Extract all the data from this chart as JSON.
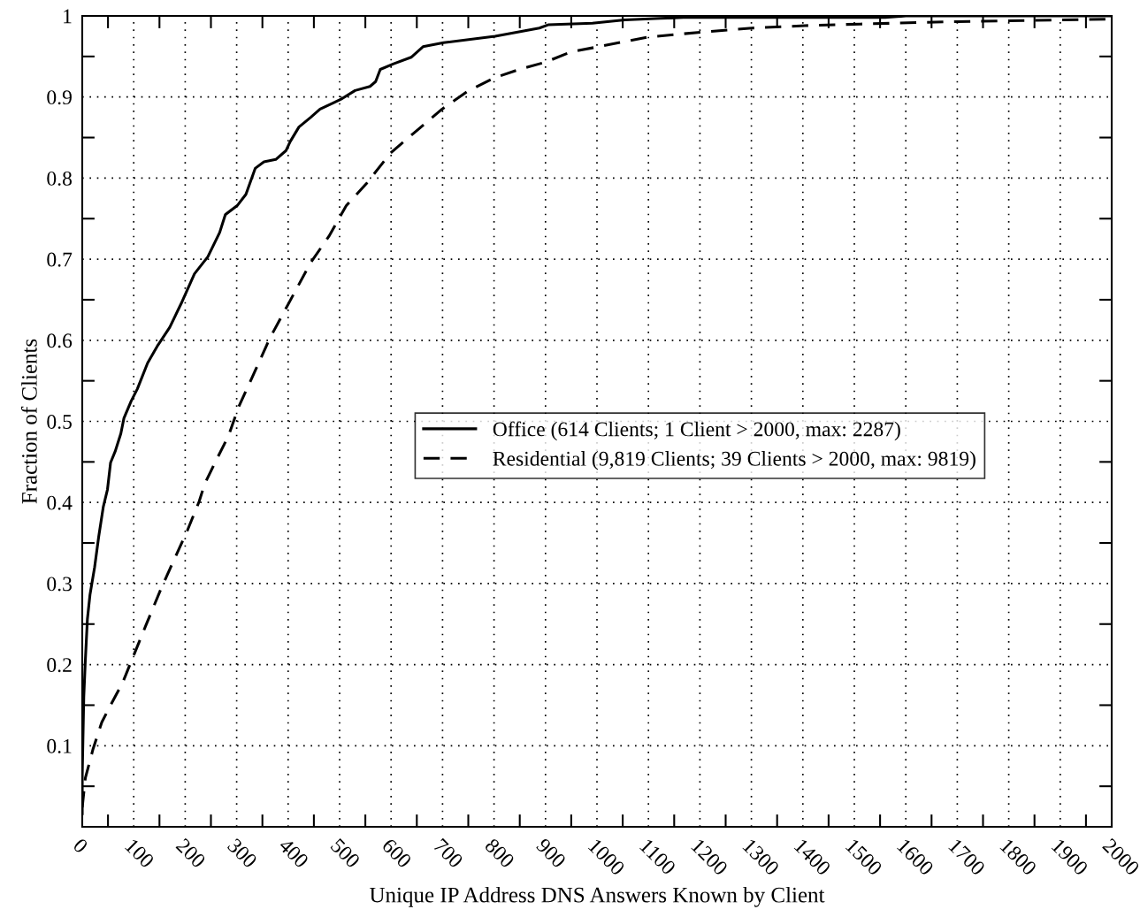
{
  "chart_data": {
    "type": "line",
    "xlabel": "Unique IP Address DNS Answers Known by Client",
    "ylabel": "Fraction of Clients",
    "xlim": [
      0,
      2000
    ],
    "ylim": [
      0,
      1
    ],
    "xticks": [
      0,
      {
        "value": 50,
        "label": null
      },
      100,
      {
        "value": 150,
        "label": null
      },
      200,
      {
        "value": 250,
        "label": null
      },
      300,
      {
        "value": 350,
        "label": null
      },
      400,
      {
        "value": 450,
        "label": null
      },
      500,
      {
        "value": 550,
        "label": null
      },
      600,
      {
        "value": 650,
        "label": null
      },
      700,
      {
        "value": 750,
        "label": null
      },
      800,
      {
        "value": 850,
        "label": null
      },
      900,
      {
        "value": 950,
        "label": null
      },
      1000,
      {
        "value": 1050,
        "label": null
      },
      1100,
      {
        "value": 1150,
        "label": null
      },
      1200,
      {
        "value": 1250,
        "label": null
      },
      1300,
      {
        "value": 1350,
        "label": null
      },
      1400,
      {
        "value": 1450,
        "label": null
      },
      1500,
      {
        "value": 1550,
        "label": null
      },
      1600,
      {
        "value": 1650,
        "label": null
      },
      1700,
      {
        "value": 1750,
        "label": null
      },
      1800,
      {
        "value": 1850,
        "label": null
      },
      1900,
      {
        "value": 1950,
        "label": null
      },
      2000
    ],
    "yticks": [
      {
        "value": 0.05,
        "label": null
      },
      0.1,
      {
        "value": 0.15,
        "label": null
      },
      0.2,
      {
        "value": 0.25,
        "label": null
      },
      0.3,
      {
        "value": 0.35,
        "label": null
      },
      0.4,
      {
        "value": 0.45,
        "label": null
      },
      0.5,
      {
        "value": 0.55,
        "label": null
      },
      0.6,
      {
        "value": 0.65,
        "label": null
      },
      0.7,
      {
        "value": 0.75,
        "label": null
      },
      0.8,
      {
        "value": 0.85,
        "label": null
      },
      0.9,
      {
        "value": 0.95,
        "label": null
      },
      1
    ],
    "grid": true,
    "legend": "center",
    "marker": "none",
    "series": [
      {
        "name": "Office (614 Clients; 1 Client > 2000, max: 2287)",
        "color": "#000000",
        "line_style": "solid",
        "x": [
          0,
          0,
          3,
          6,
          10,
          15,
          24,
          32,
          41,
          49,
          55,
          64,
          75,
          81,
          95,
          107,
          127,
          147,
          170,
          192,
          218,
          244,
          267,
          278,
          301,
          318,
          336,
          353,
          376,
          396,
          404,
          421,
          444,
          462,
          485,
          502,
          530,
          559,
          570,
          579,
          605,
          639,
          662,
          702,
          802,
          888,
          905,
          991,
          1054,
          1123,
          1168,
          1560,
          1600,
          2000
        ],
        "values": [
          0.016,
          0.064,
          0.16,
          0.205,
          0.256,
          0.286,
          0.32,
          0.358,
          0.395,
          0.416,
          0.449,
          0.463,
          0.485,
          0.504,
          0.525,
          0.54,
          0.572,
          0.594,
          0.616,
          0.645,
          0.682,
          0.703,
          0.733,
          0.755,
          0.766,
          0.78,
          0.812,
          0.82,
          0.823,
          0.834,
          0.845,
          0.863,
          0.875,
          0.885,
          0.892,
          0.897,
          0.908,
          0.913,
          0.919,
          0.934,
          0.941,
          0.949,
          0.962,
          0.967,
          0.975,
          0.985,
          0.989,
          0.991,
          0.995,
          0.997,
          0.998,
          0.998,
          1.0,
          1.0
        ]
      },
      {
        "name": "Residential (9,819 Clients; 39 Clients > 2000, max: 9819)",
        "color": "#000000",
        "line_style": "dashed",
        "x": [
          0,
          6,
          21,
          38,
          55,
          78,
          101,
          124,
          152,
          181,
          204,
          227,
          238,
          261,
          284,
          304,
          330,
          364,
          404,
          444,
          479,
          513,
          553,
          599,
          645,
          699,
          751,
          802,
          854,
          900,
          951,
          1003,
          1100,
          1203,
          1301,
          1404,
          1512,
          1700,
          2000
        ],
        "values": [
          0.024,
          0.06,
          0.096,
          0.129,
          0.15,
          0.177,
          0.213,
          0.249,
          0.292,
          0.333,
          0.365,
          0.401,
          0.423,
          0.453,
          0.482,
          0.518,
          0.554,
          0.602,
          0.649,
          0.696,
          0.728,
          0.766,
          0.794,
          0.831,
          0.856,
          0.885,
          0.908,
          0.924,
          0.935,
          0.943,
          0.956,
          0.962,
          0.974,
          0.98,
          0.985,
          0.988,
          0.99,
          0.993,
          0.996
        ]
      }
    ]
  }
}
